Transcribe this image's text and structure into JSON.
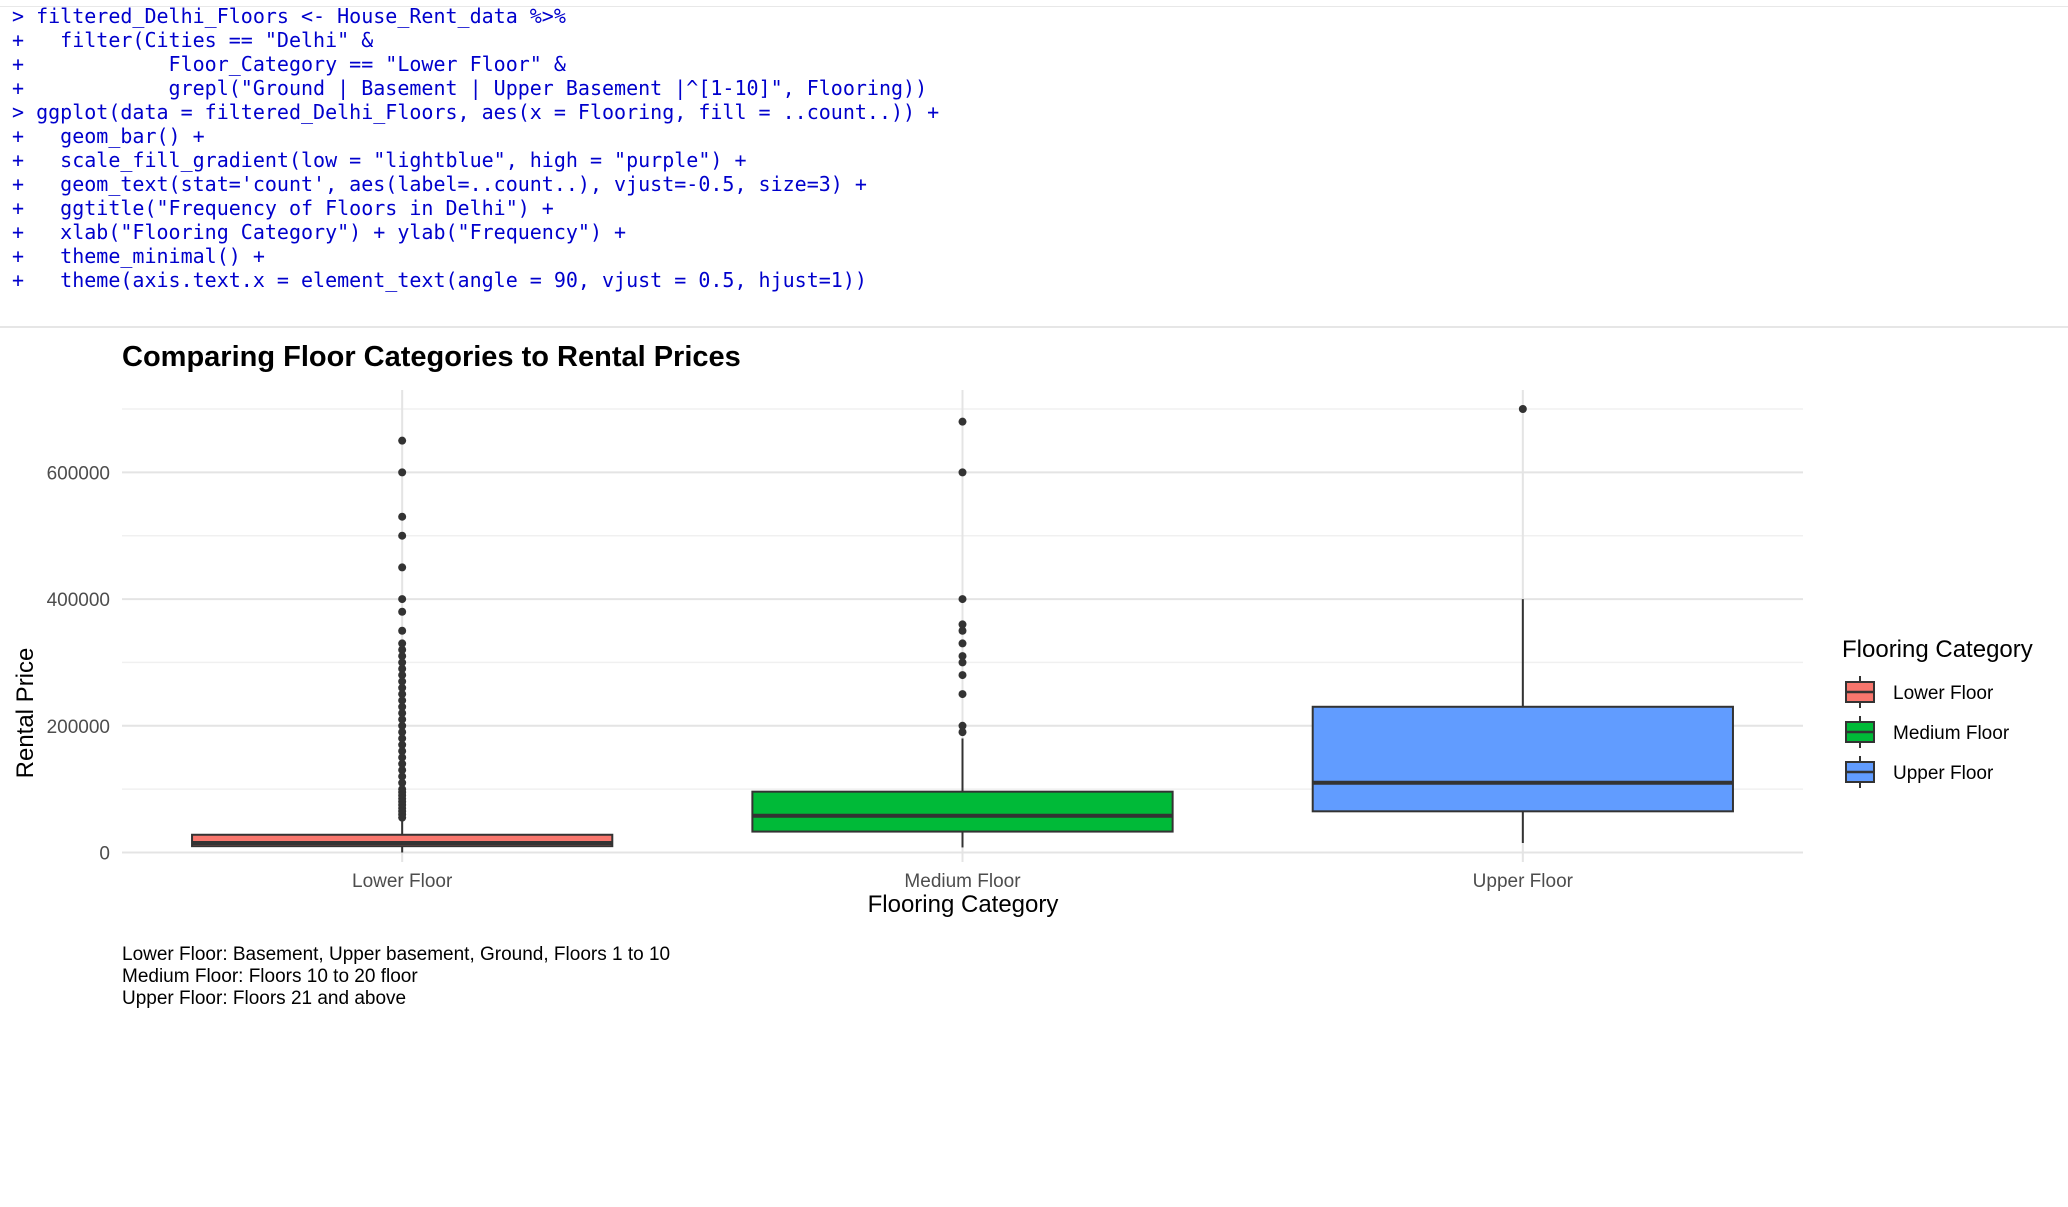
{
  "console": {
    "lines": [
      {
        "prompt": ">",
        "code": " filtered_Delhi_Floors <- House_Rent_data %>%"
      },
      {
        "prompt": "+",
        "code": "   filter(Cities == \"Delhi\" &"
      },
      {
        "prompt": "+",
        "code": "            Floor_Category == \"Lower Floor\" &"
      },
      {
        "prompt": "+",
        "code": "            grepl(\"Ground | Basement | Upper Basement |^[1-10]\", Flooring))"
      },
      {
        "prompt": ">",
        "code": " ggplot(data = filtered_Delhi_Floors, aes(x = Flooring, fill = ..count..)) +"
      },
      {
        "prompt": "+",
        "code": "   geom_bar() +"
      },
      {
        "prompt": "+",
        "code": "   scale_fill_gradient(low = \"lightblue\", high = \"purple\") +"
      },
      {
        "prompt": "+",
        "code": "   geom_text(stat='count', aes(label=..count..), vjust=-0.5, size=3) +"
      },
      {
        "prompt": "+",
        "code": "   ggtitle(\"Frequency of Floors in Delhi\") +"
      },
      {
        "prompt": "+",
        "code": "   xlab(\"Flooring Category\") + ylab(\"Frequency\") +"
      },
      {
        "prompt": "+",
        "code": "   theme_minimal() +"
      },
      {
        "prompt": "+",
        "code": "   theme(axis.text.x = element_text(angle = 90, vjust = 0.5, hjust=1))"
      }
    ]
  },
  "chart_data": {
    "type": "boxplot",
    "title": "Comparing Floor Categories to Rental Prices",
    "xlabel": "Flooring Category",
    "ylabel": "Rental Price",
    "ylim": [
      -15000,
      730000
    ],
    "yticks": [
      0,
      200000,
      400000,
      600000
    ],
    "grid": true,
    "legend": {
      "title": "Flooring Category",
      "placement": "right",
      "entries": [
        "Lower Floor",
        "Medium Floor",
        "Upper Floor"
      ]
    },
    "categories": [
      "Lower Floor",
      "Medium Floor",
      "Upper Floor"
    ],
    "series": [
      {
        "category": "Lower Floor",
        "color": "#F8766D",
        "min": 0,
        "q1": 10000,
        "median": 15000,
        "q3": 28000,
        "whisker_high": 50000,
        "outliers": [
          650000,
          600000,
          530000,
          500000,
          450000,
          400000,
          380000,
          350000,
          330000,
          320000,
          310000,
          300000,
          290000,
          280000,
          270000,
          260000,
          250000,
          240000,
          230000,
          220000,
          210000,
          200000,
          190000,
          180000,
          170000,
          160000,
          150000,
          140000,
          130000,
          120000,
          110000,
          100000,
          95000,
          90000,
          85000,
          80000,
          75000,
          70000,
          65000,
          60000,
          55000
        ]
      },
      {
        "category": "Medium Floor",
        "color": "#00BA38",
        "min": 8000,
        "q1": 33000,
        "median": 58000,
        "q3": 96000,
        "whisker_high": 180000,
        "outliers": [
          680000,
          600000,
          400000,
          360000,
          350000,
          330000,
          310000,
          300000,
          280000,
          250000,
          200000,
          190000
        ]
      },
      {
        "category": "Upper Floor",
        "color": "#619CFF",
        "min": 15000,
        "q1": 65000,
        "median": 110000,
        "q3": 230000,
        "whisker_high": 400000,
        "outliers": [
          700000
        ]
      }
    ],
    "caption": [
      "Lower Floor: Basement, Upper basement, Ground, Floors 1 to 10",
      "Medium Floor: Floors 10 to 20 floor",
      "Upper Floor: Floors 21 and above"
    ]
  }
}
